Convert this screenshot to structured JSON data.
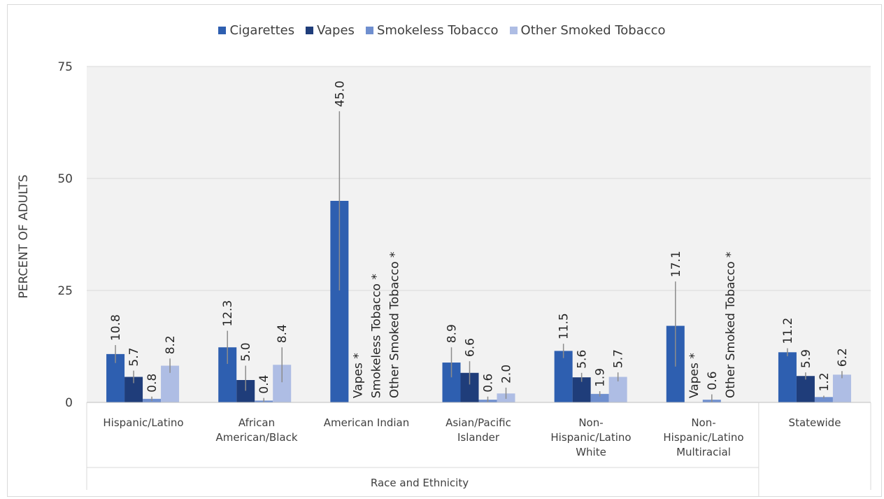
{
  "chart_data": {
    "type": "bar",
    "title": "",
    "xlabel": "Race and Ethnicity",
    "ylabel": "PERCENT OF ADULTS",
    "ylim": [
      0,
      75
    ],
    "yticks": [
      "0",
      "25",
      "50",
      "75"
    ],
    "grid": true,
    "legend_position": "top",
    "categories": [
      "Hispanic/Latino",
      "African\nAmerican/Black",
      "American Indian",
      "Asian/Pacific\nIslander",
      "Non-\nHispanic/Latino\nWhite",
      "Non-\nHispanic/Latino\nMultiracial",
      "Statewide"
    ],
    "series": [
      {
        "name": "Cigarettes",
        "color": "#2e5fb0",
        "values": [
          10.8,
          12.3,
          45.0,
          8.9,
          11.5,
          17.1,
          11.2
        ],
        "labels": [
          "10.8",
          "12.3",
          "45.0",
          "8.9",
          "11.5",
          "17.1",
          "11.2"
        ],
        "err_low": [
          8.8,
          8.6,
          25.0,
          5.6,
          9.9,
          8.0,
          10.3
        ],
        "err_high": [
          12.8,
          16.0,
          65.0,
          12.3,
          13.1,
          27.0,
          12.1
        ]
      },
      {
        "name": "Vapes",
        "color": "#1f3d7a",
        "values": [
          5.7,
          5.0,
          null,
          6.6,
          5.6,
          null,
          5.9
        ],
        "labels": [
          "5.7",
          "5.0",
          "Vapes *",
          "6.6",
          "5.6",
          "Vapes *",
          "5.9"
        ],
        "err_low": [
          4.3,
          2.6,
          null,
          4.0,
          4.6,
          null,
          5.1
        ],
        "err_high": [
          7.1,
          8.2,
          null,
          9.2,
          6.6,
          null,
          6.7
        ]
      },
      {
        "name": "Smokeless Tobacco",
        "color": "#6f8fcf",
        "values": [
          0.8,
          0.4,
          null,
          0.6,
          1.9,
          0.6,
          1.2
        ],
        "labels": [
          "0.8",
          "0.4",
          "Smokeless Tobacco *",
          "0.6",
          "1.9",
          "0.6",
          "1.2"
        ],
        "err_low": [
          0.3,
          0.0,
          null,
          0.1,
          1.3,
          0.0,
          0.9
        ],
        "err_high": [
          1.3,
          1.0,
          null,
          1.3,
          2.5,
          1.8,
          1.5
        ]
      },
      {
        "name": "Other Smoked Tobacco",
        "color": "#aebde4",
        "values": [
          8.2,
          8.4,
          null,
          2.0,
          5.7,
          null,
          6.2
        ],
        "labels": [
          "8.2",
          "8.4",
          "Other Smoked Tobacco *",
          "2.0",
          "5.7",
          "Other Smoked Tobacco *",
          "6.2"
        ],
        "err_low": [
          6.6,
          4.5,
          null,
          0.8,
          4.7,
          null,
          5.4
        ],
        "err_high": [
          9.8,
          12.3,
          null,
          3.3,
          6.7,
          null,
          7.0
        ]
      }
    ]
  }
}
